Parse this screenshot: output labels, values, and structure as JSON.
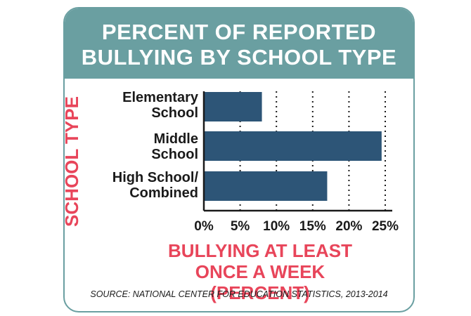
{
  "title_lines": [
    "PERCENT OF REPORTED",
    "BULLYING BY SCHOOL TYPE"
  ],
  "y_axis_title": "SCHOOL TYPE",
  "x_axis_title_lines": [
    "BULLYING AT LEAST",
    "ONCE A WEEK (PERCENT)"
  ],
  "source": "SOURCE: NATIONAL CENTER FOR EDUCATION STATISTICS, 2013-2014",
  "colors": {
    "header": "#6a9fa1",
    "accent": "#e8455a",
    "bar": "#2d5577"
  },
  "chart_data": {
    "type": "bar",
    "orientation": "horizontal",
    "categories": [
      [
        "Elementary",
        "School"
      ],
      [
        "Middle",
        "School"
      ],
      [
        "High School/",
        "Combined"
      ]
    ],
    "values": [
      8,
      24.5,
      17
    ],
    "xlim": [
      0,
      25
    ],
    "ticks": [
      "0%",
      "5%",
      "10%",
      "15%",
      "20%",
      "25%"
    ],
    "grid": true
  }
}
